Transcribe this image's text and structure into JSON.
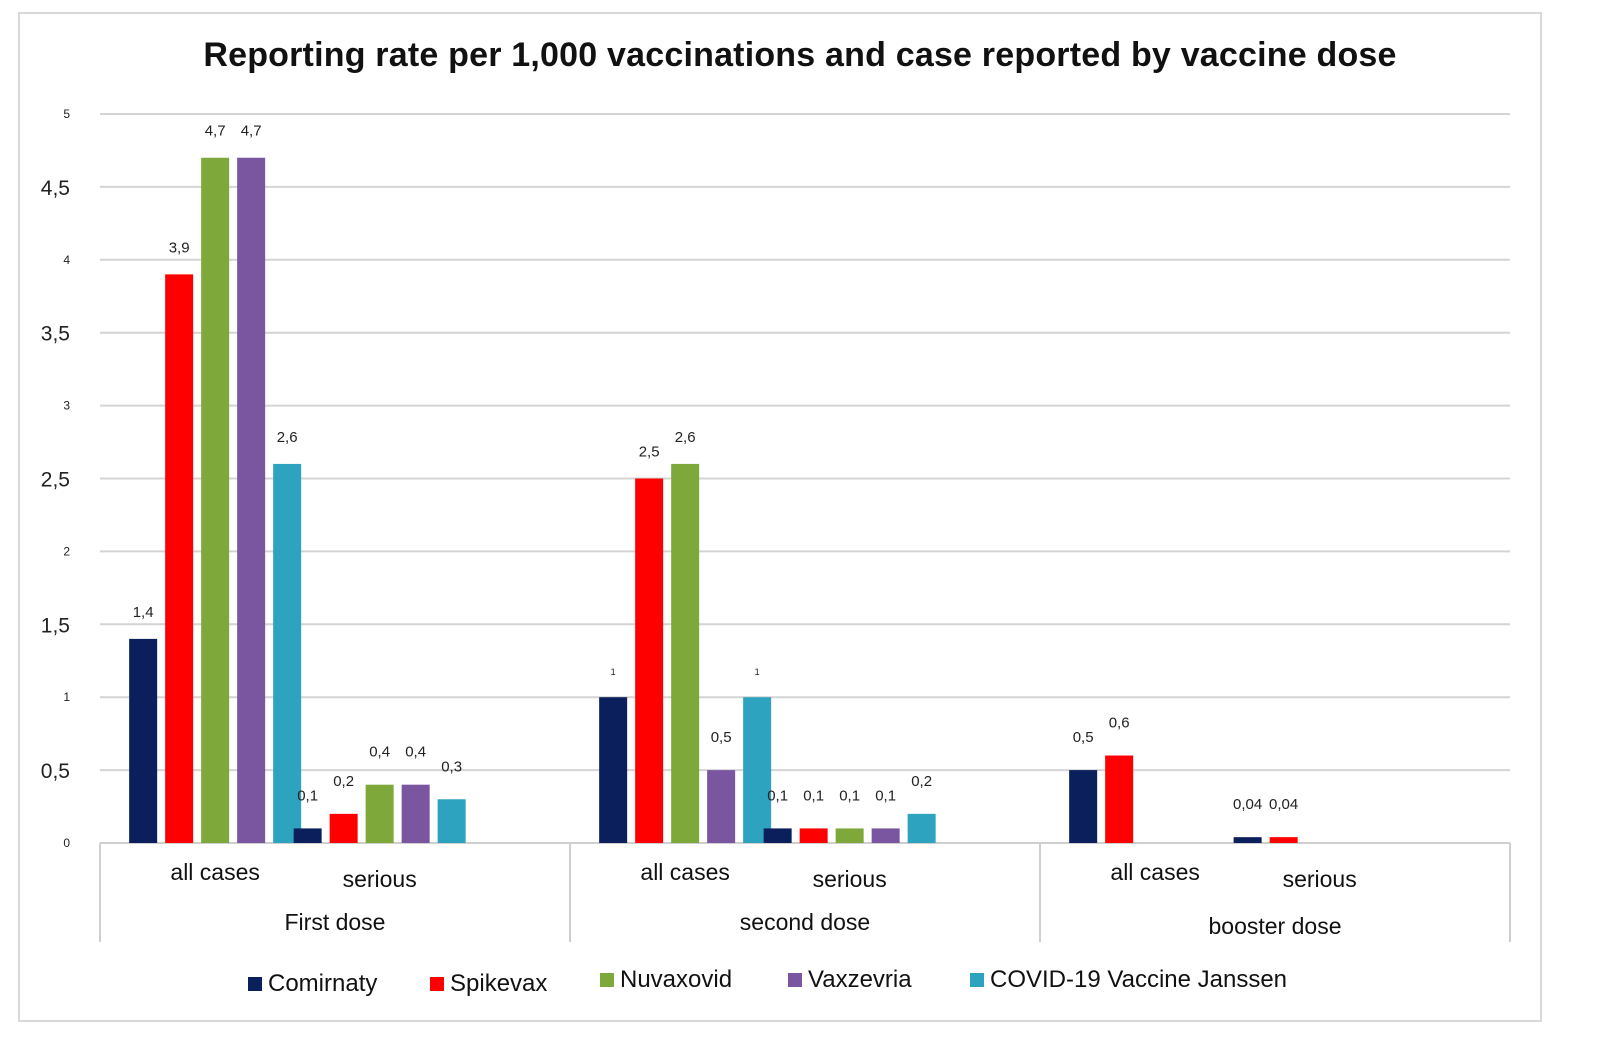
{
  "chart_data": {
    "type": "bar",
    "title": "Reporting rate per 1,000 vaccinations and case reported by vaccine dose",
    "xlabel": "",
    "ylabel": "",
    "ylim": [
      0,
      5
    ],
    "yticks": [
      {
        "value": 0,
        "label": "0"
      },
      {
        "value": 0.5,
        "label": "0,5"
      },
      {
        "value": 1,
        "label": "1"
      },
      {
        "value": 1.5,
        "label": "1,5"
      },
      {
        "value": 2,
        "label": "2"
      },
      {
        "value": 2.5,
        "label": "2,5"
      },
      {
        "value": 3,
        "label": "3"
      },
      {
        "value": 3.5,
        "label": "3,5"
      },
      {
        "value": 4,
        "label": "4"
      },
      {
        "value": 4.5,
        "label": "4,5"
      },
      {
        "value": 5,
        "label": "5"
      }
    ],
    "grid": true,
    "legend_position": "bottom",
    "groups": [
      {
        "label": "First dose",
        "subcategories": [
          "all cases",
          "serious"
        ]
      },
      {
        "label": "second dose",
        "subcategories": [
          "all cases",
          "serious"
        ]
      },
      {
        "label": "booster dose",
        "subcategories": [
          "all cases",
          "serious"
        ]
      }
    ],
    "categories": [
      "First dose | all cases",
      "First dose | serious",
      "second dose | all cases",
      "second dose | serious",
      "booster dose | all cases",
      "booster dose | serious"
    ],
    "series": [
      {
        "name": "Comirnaty",
        "color": "#0b1f5c",
        "values": [
          1.4,
          0.1,
          1,
          0.1,
          0.5,
          0.04
        ],
        "labels": [
          "1,4",
          "0,1",
          "1",
          "0,1",
          "0,5",
          "0,04"
        ]
      },
      {
        "name": "Spikevax",
        "color": "#ff0000",
        "values": [
          3.9,
          0.2,
          2.5,
          0.1,
          0.6,
          0.04
        ],
        "labels": [
          "3,9",
          "0,2",
          "2,5",
          "0,1",
          "0,6",
          "0,04"
        ]
      },
      {
        "name": "Nuvaxovid",
        "color": "#7fa83a",
        "values": [
          4.7,
          0.4,
          2.6,
          0.1,
          null,
          null
        ],
        "labels": [
          "4,7",
          "0,4",
          "2,6",
          "0,1",
          "",
          ""
        ]
      },
      {
        "name": "Vaxzevria",
        "color": "#7a56a0",
        "values": [
          4.7,
          0.4,
          0.5,
          0.1,
          null,
          null
        ],
        "labels": [
          "4,7",
          "0,4",
          "0,5",
          "0,1",
          "",
          ""
        ]
      },
      {
        "name": "COVID-19 Vaccine Janssen",
        "color": "#2ea3bf",
        "values": [
          2.6,
          0.3,
          1,
          0.2,
          null,
          null
        ],
        "labels": [
          "2,6",
          "0,3",
          "1",
          "0,2",
          "",
          ""
        ]
      }
    ]
  }
}
